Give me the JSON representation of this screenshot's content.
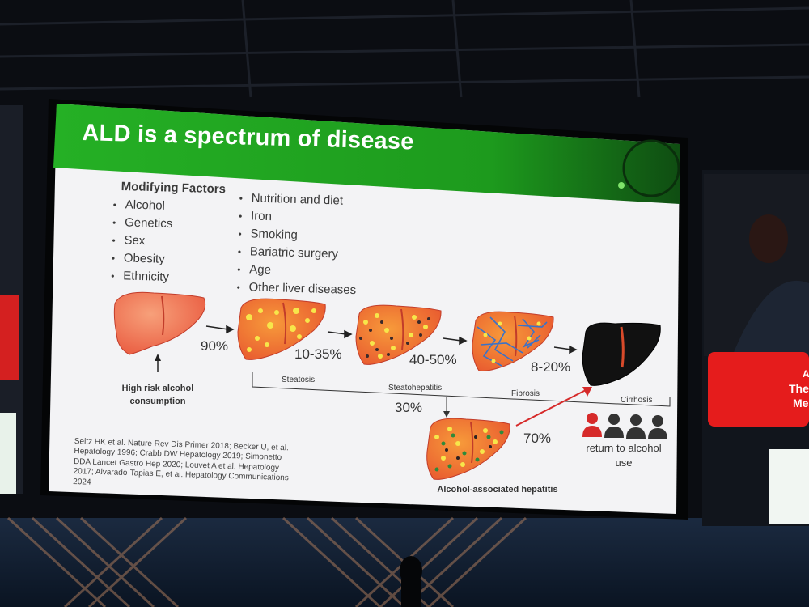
{
  "slide": {
    "title": "ALD is a spectrum of disease",
    "modifying_factors_heading": "Modifying Factors",
    "factors_left": [
      "Alcohol",
      "Genetics",
      "Sex",
      "Obesity",
      "Ethnicity"
    ],
    "factors_right": [
      "Nutrition and diet",
      "Iron",
      "Smoking",
      "Bariatric surgery",
      "Age",
      "Other liver diseases"
    ],
    "trigger_label": "High risk alcohol consumption",
    "stages": [
      "Steatosis",
      "Steatohepatitis",
      "Fibrosis",
      "Cirrhosis"
    ],
    "progression_percentages": [
      "90%",
      "10-35%",
      "40-50%",
      "8-20%"
    ],
    "hepatitis_branch_percent": "30%",
    "hepatitis_label": "Alcohol-associated hepatitis",
    "hepatitis_to_cirrhosis_percent": "70%",
    "return_label": "return to alcohol use",
    "references": "Seitz HK et al. Nature Rev Dis Primer 2018; Becker U, et al. Hepatology 1996; Crabb DW Hepatology 2019; Simonetto DDA Lancet Gastro Hep 2020; Louvet A et al. Hepatology 2017; Alvarado-Tapias E, et al. Hepatology Communications 2024",
    "people_icons": {
      "highlighted_count": 1,
      "total": 4,
      "highlight_color": "#d62a2a",
      "other_color": "#333333"
    }
  },
  "side_screen": {
    "line1": "AASL",
    "line2": "The Li",
    "line3": "Meet"
  },
  "colors": {
    "title_bar": "#1fa21f",
    "slide_bg": "#f3f3f5",
    "healthy_liver": "#f06a4a",
    "cirrhotic_liver": "#111111",
    "arrow_red": "#d62a2a"
  }
}
